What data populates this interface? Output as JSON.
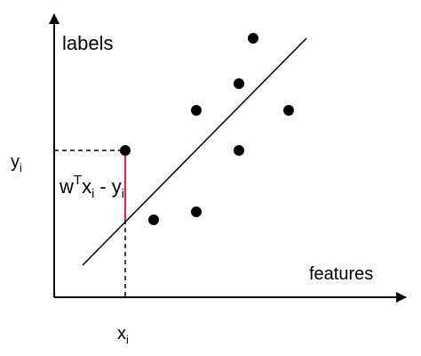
{
  "diagram": {
    "y_axis_label": "labels",
    "x_axis_label": "features",
    "yi_label": {
      "main": "y",
      "sub": "i"
    },
    "xi_label": {
      "main": "x",
      "sub": "i"
    },
    "residual_label": {
      "w": "w",
      "sup": "T",
      "x": "x",
      "x_sub": "i",
      "minus": " - ",
      "y": "y",
      "y_sub": "i"
    }
  },
  "chart_data": {
    "type": "scatter",
    "title": "",
    "xlabel": "features",
    "ylabel": "labels",
    "xlim": [
      0,
      100
    ],
    "ylim": [
      0,
      100
    ],
    "points": [
      {
        "x": 20,
        "y": 55
      },
      {
        "x": 28,
        "y": 29
      },
      {
        "x": 40,
        "y": 70
      },
      {
        "x": 40,
        "y": 32
      },
      {
        "x": 52,
        "y": 80
      },
      {
        "x": 52,
        "y": 55
      },
      {
        "x": 56,
        "y": 97
      },
      {
        "x": 66,
        "y": 70
      }
    ],
    "regression_line": {
      "x": [
        8,
        71
      ],
      "y": [
        12,
        97
      ]
    },
    "highlight": {
      "x": 20,
      "y": 55,
      "predicted_y": 29,
      "residual_color": "#e0262f"
    },
    "colors": {
      "axis": "#000000",
      "point": "#000000",
      "line": "#000000",
      "residual": "#e0262f"
    }
  }
}
